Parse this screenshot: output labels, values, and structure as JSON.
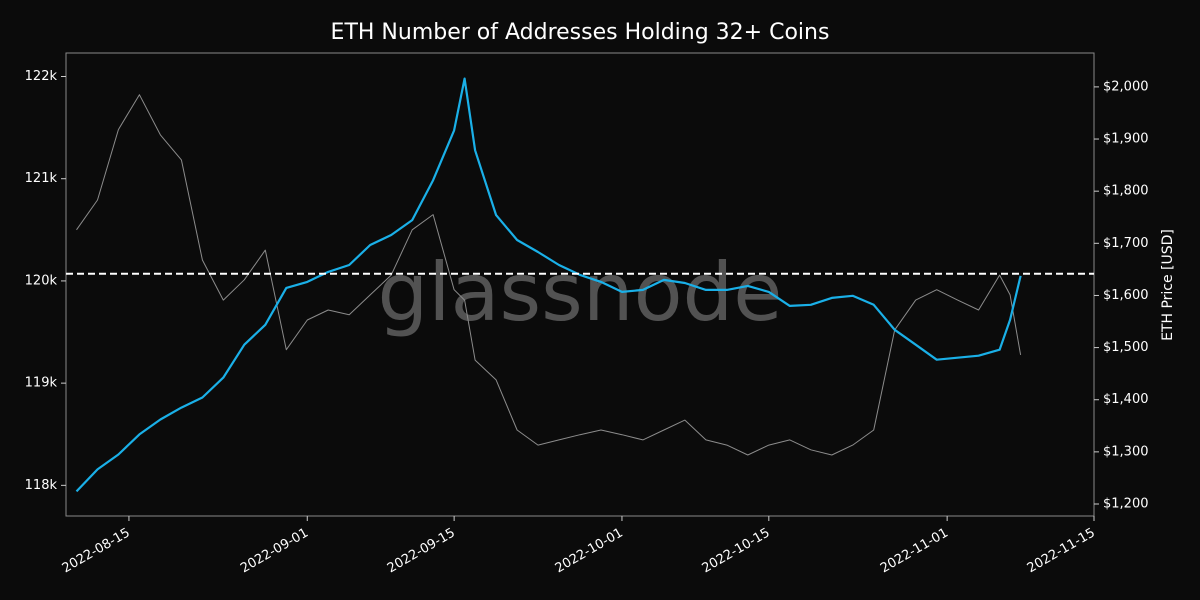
{
  "chart_data": {
    "type": "line",
    "title": "ETH Number of Addresses Holding 32+ Coins",
    "y2_label": "ETH Price [USD]",
    "watermark": "glassnode",
    "x": [
      "2022-08-10",
      "2022-08-12",
      "2022-08-14",
      "2022-08-16",
      "2022-08-18",
      "2022-08-20",
      "2022-08-22",
      "2022-08-24",
      "2022-08-26",
      "2022-08-28",
      "2022-08-30",
      "2022-09-01",
      "2022-09-03",
      "2022-09-05",
      "2022-09-07",
      "2022-09-09",
      "2022-09-11",
      "2022-09-13",
      "2022-09-15",
      "2022-09-16",
      "2022-09-17",
      "2022-09-19",
      "2022-09-21",
      "2022-09-23",
      "2022-09-25",
      "2022-09-27",
      "2022-09-29",
      "2022-10-01",
      "2022-10-03",
      "2022-10-05",
      "2022-10-07",
      "2022-10-09",
      "2022-10-11",
      "2022-10-13",
      "2022-10-15",
      "2022-10-17",
      "2022-10-19",
      "2022-10-21",
      "2022-10-23",
      "2022-10-25",
      "2022-10-27",
      "2022-10-29",
      "2022-10-31",
      "2022-11-02",
      "2022-11-04",
      "2022-11-06",
      "2022-11-07",
      "2022-11-08"
    ],
    "series": [
      {
        "name": "Addresses Holding 32+ Coins",
        "color": "#1ab0e8",
        "axis": "y",
        "values": [
          117941,
          118156,
          118302,
          118498,
          118644,
          118761,
          118859,
          119054,
          119376,
          119571,
          119932,
          119990,
          120088,
          120156,
          120351,
          120449,
          120595,
          120985,
          121473,
          121980,
          121278,
          120644,
          120400,
          120283,
          120156,
          120059,
          119990,
          119893,
          119912,
          120010,
          119980,
          119912,
          119912,
          119951,
          119893,
          119756,
          119766,
          119834,
          119854,
          119766,
          119522,
          119376,
          119229,
          119249,
          119268,
          119327,
          119620,
          120049
        ]
      },
      {
        "name": "ETH Price",
        "color": "#8c8c8c",
        "axis": "y2",
        "values": [
          1726,
          1783,
          1918,
          1985,
          1908,
          1860,
          1668,
          1591,
          1630,
          1687,
          1496,
          1553,
          1572,
          1563,
          1601,
          1639,
          1726,
          1755,
          1611,
          1591,
          1476,
          1438,
          1342,
          1313,
          1323,
          1333,
          1342,
          1333,
          1323,
          1342,
          1361,
          1323,
          1313,
          1294,
          1313,
          1323,
          1304,
          1294,
          1313,
          1342,
          1534,
          1591,
          1611,
          1591,
          1572,
          1639,
          1601,
          1486
        ]
      }
    ],
    "reference_line": {
      "value": 120070
    },
    "xlim": [
      "2022-08-09",
      "2022-11-15"
    ],
    "xticks": [
      "2022-08-15",
      "2022-09-01",
      "2022-09-15",
      "2022-10-01",
      "2022-10-15",
      "2022-11-01",
      "2022-11-15"
    ],
    "ylim": [
      117700,
      122230
    ],
    "yticks": [
      {
        "value": 118000,
        "label": "118k"
      },
      {
        "value": 119000,
        "label": "119k"
      },
      {
        "value": 120000,
        "label": "120k"
      },
      {
        "value": 121000,
        "label": "121k"
      },
      {
        "value": 122000,
        "label": "122k"
      }
    ],
    "y2lim": [
      1177,
      2065
    ],
    "y2ticks": [
      {
        "value": 1200,
        "label": "$1,200"
      },
      {
        "value": 1300,
        "label": "$1,300"
      },
      {
        "value": 1400,
        "label": "$1,400"
      },
      {
        "value": 1500,
        "label": "$1,500"
      },
      {
        "value": 1600,
        "label": "$1,600"
      },
      {
        "value": 1700,
        "label": "$1,700"
      },
      {
        "value": 1800,
        "label": "$1,800"
      },
      {
        "value": 1900,
        "label": "$1,900"
      },
      {
        "value": 2000,
        "label": "$2,000"
      }
    ]
  }
}
